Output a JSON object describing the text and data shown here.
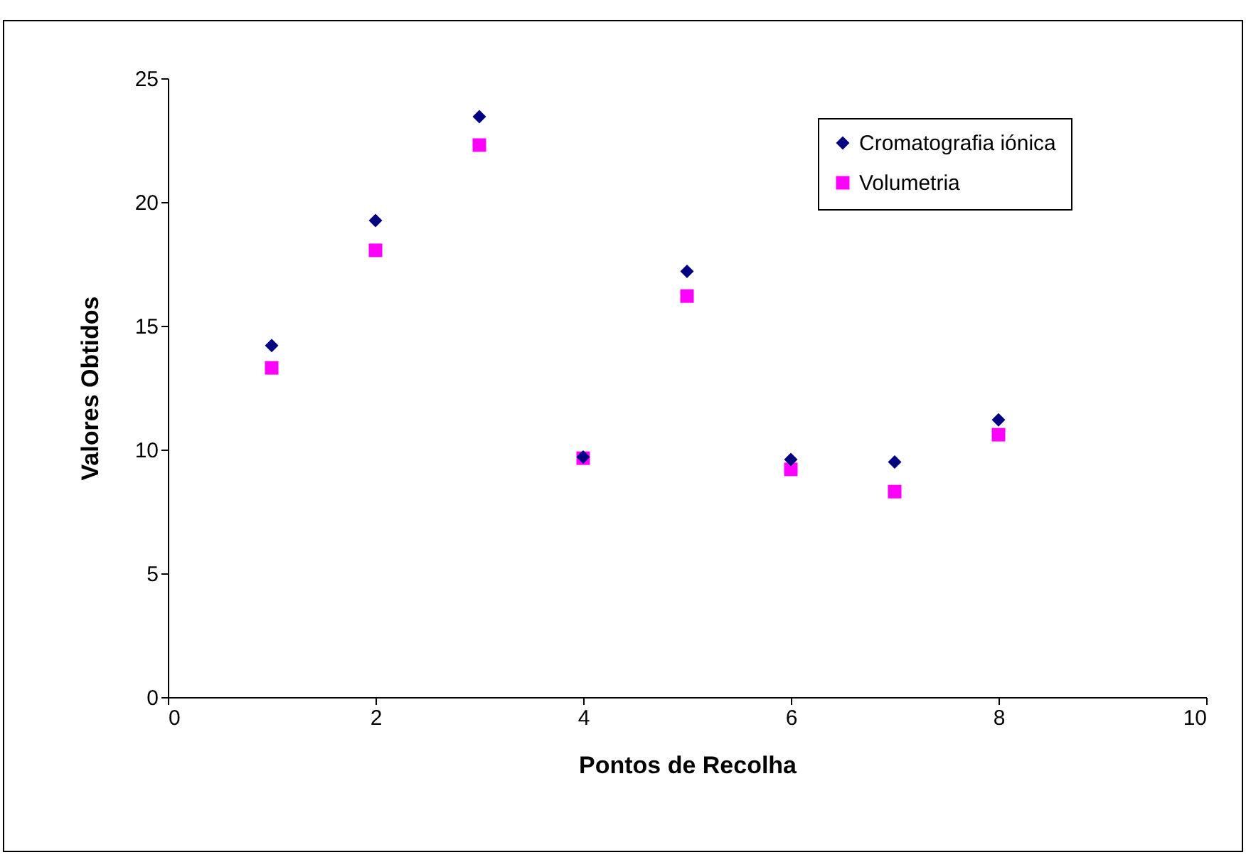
{
  "chart_data": {
    "type": "scatter",
    "xlabel": "Pontos de Recolha",
    "ylabel": "Valores Obtidos",
    "x": [
      1,
      2,
      3,
      4,
      5,
      6,
      7,
      8
    ],
    "series": [
      {
        "name": "Cromatografia iónica",
        "color": "#000080",
        "marker": "diamond",
        "values": [
          14.2,
          19.25,
          23.45,
          9.7,
          17.2,
          9.6,
          9.5,
          11.2
        ]
      },
      {
        "name": "Volumetria",
        "color": "#ff00ff",
        "marker": "square",
        "values": [
          13.3,
          18.05,
          22.3,
          9.65,
          16.2,
          9.2,
          8.3,
          10.6
        ]
      }
    ],
    "xlim": [
      0,
      10
    ],
    "xticks": [
      0,
      2,
      4,
      6,
      8,
      10
    ],
    "ylim": [
      0,
      25
    ],
    "yticks": [
      0,
      5,
      10,
      15,
      20,
      25
    ],
    "legend": "top right"
  }
}
